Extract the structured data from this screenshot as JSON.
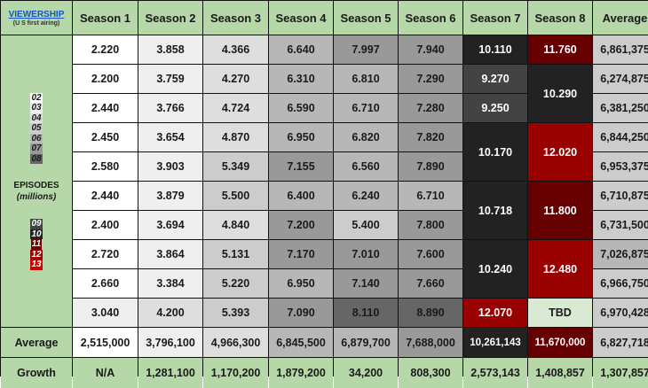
{
  "header": {
    "corner_title": "VIEWERSHIP",
    "corner_subtitle": "(U S first airing)",
    "columns": [
      "Season 1",
      "Season 2",
      "Season 3",
      "Season 4",
      "Season 5",
      "Season 6",
      "Season 7",
      "Season 8",
      "Average"
    ]
  },
  "side": {
    "label": "EPISODES",
    "sublabel": "(millions)",
    "legend_top": [
      {
        "label": "02",
        "bg": "#ffffff",
        "fg": "#1a1a1a"
      },
      {
        "label": "03",
        "bg": "#efefef",
        "fg": "#1a1a1a"
      },
      {
        "label": "04",
        "bg": "#dedede",
        "fg": "#1a1a1a"
      },
      {
        "label": "05",
        "bg": "#cccccc",
        "fg": "#1a1a1a"
      },
      {
        "label": "06",
        "bg": "#b7b7b7",
        "fg": "#1a1a1a"
      },
      {
        "label": "07",
        "bg": "#999999",
        "fg": "#1a1a1a"
      },
      {
        "label": "08",
        "bg": "#666666",
        "fg": "#1a1a1a"
      }
    ],
    "legend_bottom": [
      {
        "label": "09",
        "bg": "#434343",
        "fg": "#ffffff"
      },
      {
        "label": "10",
        "bg": "#222222",
        "fg": "#ffffff"
      },
      {
        "label": "11",
        "bg": "#660000",
        "fg": "#ffffff"
      },
      {
        "label": "12",
        "bg": "#990000",
        "fg": "#ffffff"
      },
      {
        "label": "13",
        "bg": "#cc0000",
        "fg": "#ffffff"
      }
    ]
  },
  "seasons": [
    {
      "name": "Season 1",
      "episodes": [
        {
          "v": "2.220",
          "bg": "#ffffff"
        },
        {
          "v": "2.200",
          "bg": "#ffffff"
        },
        {
          "v": "2.440",
          "bg": "#ffffff"
        },
        {
          "v": "2.450",
          "bg": "#ffffff"
        },
        {
          "v": "2.580",
          "bg": "#ffffff"
        },
        {
          "v": "2.440",
          "bg": "#ffffff"
        },
        {
          "v": "2.400",
          "bg": "#ffffff"
        },
        {
          "v": "2.720",
          "bg": "#ffffff"
        },
        {
          "v": "2.660",
          "bg": "#ffffff"
        },
        {
          "v": "3.040",
          "bg": "#efefef"
        }
      ]
    },
    {
      "name": "Season 2",
      "episodes": [
        {
          "v": "3.858",
          "bg": "#efefef"
        },
        {
          "v": "3.759",
          "bg": "#efefef"
        },
        {
          "v": "3.766",
          "bg": "#efefef"
        },
        {
          "v": "3.654",
          "bg": "#efefef"
        },
        {
          "v": "3.903",
          "bg": "#efefef"
        },
        {
          "v": "3.879",
          "bg": "#efefef"
        },
        {
          "v": "3.694",
          "bg": "#efefef"
        },
        {
          "v": "3.864",
          "bg": "#efefef"
        },
        {
          "v": "3.384",
          "bg": "#efefef"
        },
        {
          "v": "4.200",
          "bg": "#dedede"
        }
      ]
    },
    {
      "name": "Season 3",
      "episodes": [
        {
          "v": "4.366",
          "bg": "#dedede"
        },
        {
          "v": "4.270",
          "bg": "#dedede"
        },
        {
          "v": "4.724",
          "bg": "#dedede"
        },
        {
          "v": "4.870",
          "bg": "#dedede"
        },
        {
          "v": "5.349",
          "bg": "#cccccc"
        },
        {
          "v": "5.500",
          "bg": "#cccccc"
        },
        {
          "v": "4.840",
          "bg": "#dedede"
        },
        {
          "v": "5.131",
          "bg": "#cccccc"
        },
        {
          "v": "5.220",
          "bg": "#cccccc"
        },
        {
          "v": "5.393",
          "bg": "#cccccc"
        }
      ]
    },
    {
      "name": "Season 4",
      "episodes": [
        {
          "v": "6.640",
          "bg": "#b7b7b7"
        },
        {
          "v": "6.310",
          "bg": "#b7b7b7"
        },
        {
          "v": "6.590",
          "bg": "#b7b7b7"
        },
        {
          "v": "6.950",
          "bg": "#b7b7b7"
        },
        {
          "v": "7.155",
          "bg": "#999999"
        },
        {
          "v": "6.400",
          "bg": "#b7b7b7"
        },
        {
          "v": "7.200",
          "bg": "#999999"
        },
        {
          "v": "7.170",
          "bg": "#999999"
        },
        {
          "v": "6.950",
          "bg": "#b7b7b7"
        },
        {
          "v": "7.090",
          "bg": "#999999"
        }
      ]
    },
    {
      "name": "Season 5",
      "episodes": [
        {
          "v": "7.997",
          "bg": "#999999"
        },
        {
          "v": "6.810",
          "bg": "#b7b7b7"
        },
        {
          "v": "6.710",
          "bg": "#b7b7b7"
        },
        {
          "v": "6.820",
          "bg": "#b7b7b7"
        },
        {
          "v": "6.560",
          "bg": "#b7b7b7"
        },
        {
          "v": "6.240",
          "bg": "#b7b7b7"
        },
        {
          "v": "5.400",
          "bg": "#cccccc"
        },
        {
          "v": "7.010",
          "bg": "#999999"
        },
        {
          "v": "7.140",
          "bg": "#999999"
        },
        {
          "v": "8.110",
          "bg": "#666666"
        }
      ]
    },
    {
      "name": "Season 6",
      "episodes": [
        {
          "v": "7.940",
          "bg": "#999999"
        },
        {
          "v": "7.290",
          "bg": "#999999"
        },
        {
          "v": "7.280",
          "bg": "#999999"
        },
        {
          "v": "7.820",
          "bg": "#999999"
        },
        {
          "v": "7.890",
          "bg": "#999999"
        },
        {
          "v": "6.710",
          "bg": "#b7b7b7"
        },
        {
          "v": "7.800",
          "bg": "#999999"
        },
        {
          "v": "7.600",
          "bg": "#999999"
        },
        {
          "v": "7.660",
          "bg": "#999999"
        },
        {
          "v": "8.890",
          "bg": "#666666"
        }
      ]
    }
  ],
  "season7": [
    {
      "v": "10.110",
      "bg": "#222222",
      "span": 1
    },
    {
      "v": "9.270",
      "bg": "#434343",
      "span": 1
    },
    {
      "v": "9.250",
      "bg": "#434343",
      "span": 1
    },
    {
      "v": "10.170",
      "bg": "#222222",
      "span": 2
    },
    {
      "v": "10.718",
      "bg": "#222222",
      "span": 2
    },
    {
      "v": "10.240",
      "bg": "#222222",
      "span": 2
    },
    {
      "v": "12.070",
      "bg": "#990000",
      "span": 1
    }
  ],
  "season8": [
    {
      "v": "11.760",
      "bg": "#660000",
      "span": 1
    },
    {
      "v": "10.290",
      "bg": "#222222",
      "span": 2
    },
    {
      "v": "12.020",
      "bg": "#990000",
      "span": 2
    },
    {
      "v": "11.800",
      "bg": "#660000",
      "span": 2
    },
    {
      "v": "12.480",
      "bg": "#990000",
      "span": 2
    },
    {
      "v": "TBD",
      "bg": "#d9ead3",
      "span": 1
    }
  ],
  "row_averages": [
    {
      "v": "6,861,375",
      "bg": "#cccccc"
    },
    {
      "v": "6,274,875",
      "bg": "#cccccc"
    },
    {
      "v": "6,381,250",
      "bg": "#cccccc"
    },
    {
      "v": "6,844,250",
      "bg": "#cccccc"
    },
    {
      "v": "6,953,375",
      "bg": "#cccccc"
    },
    {
      "v": "6,710,875",
      "bg": "#cccccc"
    },
    {
      "v": "6,731,500",
      "bg": "#cccccc"
    },
    {
      "v": "7,026,875",
      "bg": "#b7b7b7"
    },
    {
      "v": "6,966,750",
      "bg": "#cccccc"
    },
    {
      "v": "6,970,428",
      "bg": "#cccccc"
    }
  ],
  "average_row": {
    "label": "Average",
    "values": [
      {
        "v": "2,515,000",
        "bg": "#ffffff",
        "fg": "#1a1a1a"
      },
      {
        "v": "3,796,100",
        "bg": "#efefef",
        "fg": "#1a1a1a"
      },
      {
        "v": "4,966,300",
        "bg": "#dedede",
        "fg": "#1a1a1a"
      },
      {
        "v": "6,845,500",
        "bg": "#b7b7b7",
        "fg": "#1a1a1a"
      },
      {
        "v": "6,879,700",
        "bg": "#b7b7b7",
        "fg": "#1a1a1a"
      },
      {
        "v": "7,688,000",
        "bg": "#999999",
        "fg": "#1a1a1a"
      },
      {
        "v": "10,261,143",
        "bg": "#222222",
        "fg": "#ffffff"
      },
      {
        "v": "11,670,000",
        "bg": "#660000",
        "fg": "#ffffff"
      },
      {
        "v": "6,827,718",
        "bg": "#cccccc",
        "fg": "#1a1a1a"
      }
    ]
  },
  "growth_row": {
    "label": "Growth",
    "values": [
      "N/A",
      "1,281,100",
      "1,170,200",
      "1,879,200",
      "34,200",
      "808,300",
      "2,573,143",
      "1,408,857",
      "1,307,857"
    ]
  }
}
